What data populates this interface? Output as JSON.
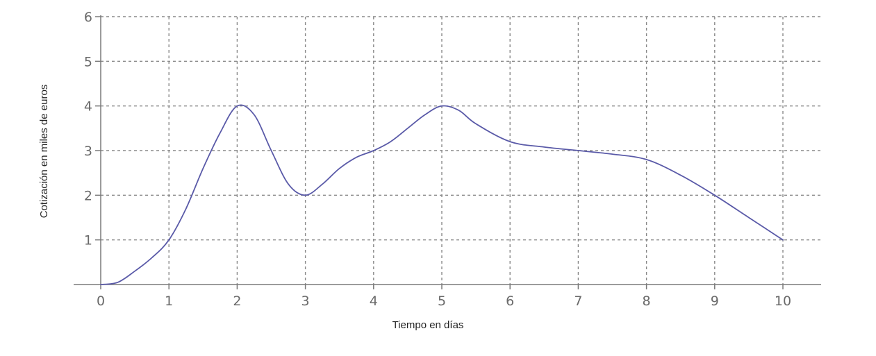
{
  "chart_data": {
    "type": "line",
    "title": "",
    "xlabel": "Tiempo en días",
    "ylabel": "Cotización en miles de euros",
    "xlim": [
      0,
      10
    ],
    "ylim": [
      0,
      6
    ],
    "x_ticks": [
      "0",
      "1",
      "2",
      "3",
      "4",
      "5",
      "6",
      "7",
      "8",
      "9",
      "10"
    ],
    "y_ticks": [
      "1",
      "2",
      "3",
      "4",
      "5",
      "6"
    ],
    "grid": true,
    "line_color": "#5a5aa8",
    "series": [
      {
        "x": [
          0,
          0.25,
          0.5,
          0.75,
          1,
          1.25,
          1.5,
          1.75,
          2,
          2.25,
          2.5,
          2.75,
          3,
          3.25,
          3.5,
          3.75,
          4,
          4.25,
          4.5,
          4.75,
          5,
          5.25,
          5.5,
          6,
          6.5,
          7,
          7.5,
          8,
          8.5,
          9,
          9.5,
          10
        ],
        "y": [
          0,
          0.05,
          0.3,
          0.6,
          1.0,
          1.7,
          2.6,
          3.4,
          4.0,
          3.8,
          3.0,
          2.25,
          2.0,
          2.25,
          2.6,
          2.85,
          3.0,
          3.2,
          3.5,
          3.8,
          4.0,
          3.9,
          3.6,
          3.2,
          3.08,
          3.0,
          2.92,
          2.8,
          2.45,
          2.0,
          1.5,
          1.0
        ]
      }
    ]
  }
}
